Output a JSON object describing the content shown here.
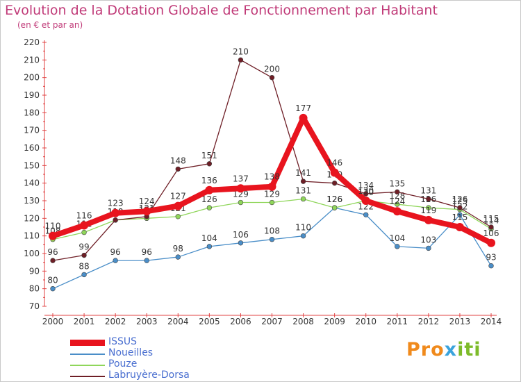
{
  "header": {
    "title": "Evolution de la Dotation Globale de Fonctionnement par Habitant",
    "subtitle": "(en € et par an)"
  },
  "logo": {
    "text": "Proxiti",
    "parts": [
      "Pro",
      "x",
      "iti"
    ]
  },
  "chart_data": {
    "type": "line",
    "title": "Evolution de la Dotation Globale de Fonctionnement par Habitant",
    "subtitle": "(en € et par an)",
    "x": [
      "2000",
      "2001",
      "2002",
      "2003",
      "2004",
      "2005",
      "2006",
      "2007",
      "2008",
      "2009",
      "2010",
      "2011",
      "2012",
      "2013",
      "2014"
    ],
    "ylim": [
      70,
      220
    ],
    "ytick_step": 10,
    "grid": false,
    "legend_position": "bottom-left",
    "series": [
      {
        "name": "ISSUS",
        "color": "#e8141e",
        "values": [
          110,
          116,
          123,
          124,
          127,
          136,
          137,
          138,
          177,
          146,
          130,
          124,
          119,
          115,
          106
        ]
      },
      {
        "name": "Noueilles",
        "color": "#4a8ec8",
        "values": [
          80,
          88,
          96,
          96,
          98,
          104,
          106,
          108,
          110,
          126,
          122,
          104,
          103,
          122,
          93
        ]
      },
      {
        "name": "Pouze",
        "color": "#8fd65a",
        "values": [
          108,
          112,
          119,
          120,
          121,
          126,
          129,
          129,
          131,
          126,
          130,
          128,
          126,
          125,
          114
        ]
      },
      {
        "name": "Labruyère-Dorsa",
        "color": "#6e1e26",
        "values": [
          96,
          99,
          119,
          121,
          148,
          151,
          210,
          200,
          141,
          140,
          134,
          135,
          131,
          126,
          115
        ]
      }
    ]
  }
}
